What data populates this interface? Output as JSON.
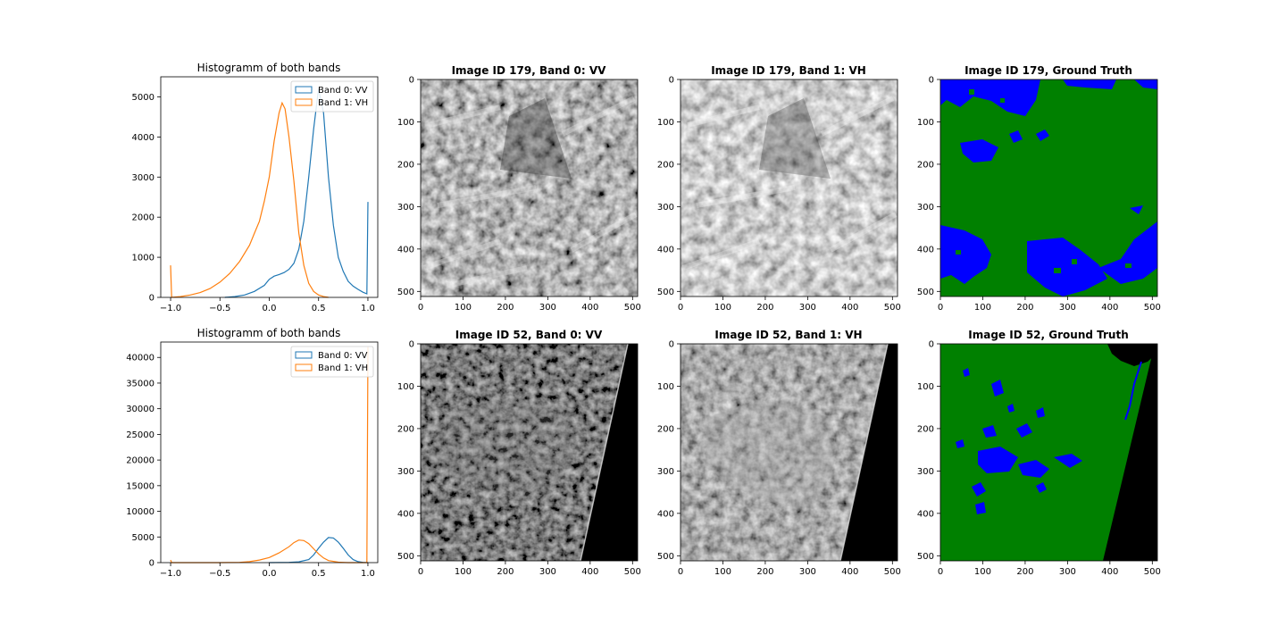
{
  "figure": {
    "colors": {
      "vv": "#1f77b4",
      "vh": "#ff7f0e",
      "water": "#0000ff",
      "land": "#008000",
      "nodata": "#000000"
    }
  },
  "chart_data": [
    {
      "type": "histogram",
      "title": "Histogramm of both bands",
      "xlim": [
        -1.1,
        1.1
      ],
      "ylim": [
        0,
        5500
      ],
      "xticks": [
        "−1.0",
        "−0.5",
        "0.0",
        "0.5",
        "1.0"
      ],
      "xtick_values": [
        -1.0,
        -0.5,
        0.0,
        0.5,
        1.0
      ],
      "yticks": [
        "0",
        "1000",
        "2000",
        "3000",
        "4000",
        "5000"
      ],
      "ytick_values": [
        0,
        1000,
        2000,
        3000,
        4000,
        5000
      ],
      "legend": {
        "placement": "upper-right",
        "entries": [
          "Band 0: VV",
          "Band 1: VH"
        ]
      },
      "series": [
        {
          "name": "Band 0: VV",
          "color": "#1f77b4",
          "x": [
            -0.45,
            -0.35,
            -0.25,
            -0.15,
            -0.05,
            0.0,
            0.05,
            0.1,
            0.15,
            0.2,
            0.25,
            0.3,
            0.35,
            0.4,
            0.45,
            0.5,
            0.55,
            0.6,
            0.65,
            0.7,
            0.75,
            0.8,
            0.85,
            0.9,
            0.95,
            0.99,
            1.0
          ],
          "y": [
            0,
            20,
            60,
            150,
            300,
            450,
            530,
            570,
            620,
            700,
            850,
            1200,
            1900,
            3000,
            4200,
            5200,
            4600,
            3000,
            1800,
            1000,
            650,
            400,
            280,
            200,
            130,
            90,
            2380
          ]
        },
        {
          "name": "Band 1: VH",
          "color": "#ff7f0e",
          "x": [
            -1.0,
            -0.99,
            -0.9,
            -0.8,
            -0.7,
            -0.6,
            -0.5,
            -0.4,
            -0.3,
            -0.2,
            -0.15,
            -0.1,
            -0.05,
            0.0,
            0.05,
            0.1,
            0.13,
            0.16,
            0.2,
            0.25,
            0.3,
            0.35,
            0.4,
            0.45,
            0.5,
            0.55,
            0.6
          ],
          "y": [
            800,
            0,
            20,
            60,
            120,
            220,
            380,
            600,
            900,
            1300,
            1600,
            1900,
            2400,
            3000,
            3900,
            4600,
            4850,
            4700,
            4000,
            2900,
            1600,
            800,
            350,
            150,
            60,
            20,
            0
          ]
        }
      ]
    },
    {
      "type": "heatmap",
      "title": "Image ID 179, Band 0: VV",
      "xlim": [
        0,
        512
      ],
      "ylim": [
        512,
        0
      ],
      "xticks": [
        "0",
        "100",
        "200",
        "300",
        "400",
        "500"
      ],
      "yticks": [
        "0",
        "100",
        "200",
        "300",
        "400",
        "500"
      ],
      "colormap": "gray"
    },
    {
      "type": "heatmap",
      "title": "Image ID 179, Band 1: VH",
      "xlim": [
        0,
        512
      ],
      "ylim": [
        512,
        0
      ],
      "xticks": [
        "0",
        "100",
        "200",
        "300",
        "400",
        "500"
      ],
      "yticks": [
        "0",
        "100",
        "200",
        "300",
        "400",
        "500"
      ],
      "colormap": "gray"
    },
    {
      "type": "heatmap",
      "title": "Image ID 179, Ground Truth",
      "xlim": [
        0,
        512
      ],
      "ylim": [
        512,
        0
      ],
      "xticks": [
        "0",
        "100",
        "200",
        "300",
        "400",
        "500"
      ],
      "yticks": [
        "0",
        "100",
        "200",
        "300",
        "400",
        "500"
      ],
      "colormap": "water=blue, land=green"
    },
    {
      "type": "histogram",
      "title": "Histogramm of both bands",
      "xlim": [
        -1.1,
        1.1
      ],
      "ylim": [
        0,
        43000
      ],
      "xticks": [
        "−1.0",
        "−0.5",
        "0.0",
        "0.5",
        "1.0"
      ],
      "xtick_values": [
        -1.0,
        -0.5,
        0.0,
        0.5,
        1.0
      ],
      "yticks": [
        "0",
        "5000",
        "10000",
        "15000",
        "20000",
        "25000",
        "30000",
        "35000",
        "40000"
      ],
      "ytick_values": [
        0,
        5000,
        10000,
        15000,
        20000,
        25000,
        30000,
        35000,
        40000
      ],
      "legend": {
        "placement": "upper-right",
        "entries": [
          "Band 0: VV",
          "Band 1: VH"
        ]
      },
      "series": [
        {
          "name": "Band 0: VV",
          "color": "#1f77b4",
          "x": [
            0.0,
            0.2,
            0.3,
            0.4,
            0.45,
            0.5,
            0.55,
            0.6,
            0.65,
            0.7,
            0.75,
            0.8,
            0.85,
            0.9,
            0.95,
            1.0
          ],
          "y": [
            0,
            50,
            150,
            600,
            1500,
            2800,
            4000,
            4900,
            4800,
            4000,
            2800,
            1500,
            600,
            200,
            50,
            0
          ]
        },
        {
          "name": "Band 1: VH",
          "color": "#ff7f0e",
          "x": [
            -1.0,
            -0.99,
            -0.5,
            -0.3,
            -0.2,
            -0.1,
            0.0,
            0.1,
            0.2,
            0.25,
            0.3,
            0.35,
            0.4,
            0.45,
            0.5,
            0.55,
            0.6,
            0.7,
            0.8,
            0.99,
            1.0
          ],
          "y": [
            500,
            0,
            0,
            50,
            200,
            500,
            1000,
            1900,
            3100,
            3900,
            4400,
            4300,
            3700,
            2700,
            1700,
            900,
            400,
            80,
            0,
            0,
            42000
          ]
        }
      ]
    },
    {
      "type": "heatmap",
      "title": "Image ID 52, Band 0: VV",
      "xlim": [
        0,
        512
      ],
      "ylim": [
        512,
        0
      ],
      "xticks": [
        "0",
        "100",
        "200",
        "300",
        "400",
        "500"
      ],
      "yticks": [
        "0",
        "100",
        "200",
        "300",
        "400",
        "500"
      ],
      "colormap": "gray"
    },
    {
      "type": "heatmap",
      "title": "Image ID 52, Band 1: VH",
      "xlim": [
        0,
        512
      ],
      "ylim": [
        512,
        0
      ],
      "xticks": [
        "0",
        "100",
        "200",
        "300",
        "400",
        "500"
      ],
      "yticks": [
        "0",
        "100",
        "200",
        "300",
        "400",
        "500"
      ],
      "colormap": "gray"
    },
    {
      "type": "heatmap",
      "title": "Image ID 52, Ground Truth",
      "xlim": [
        0,
        512
      ],
      "ylim": [
        512,
        0
      ],
      "xticks": [
        "0",
        "100",
        "200",
        "300",
        "400",
        "500"
      ],
      "yticks": [
        "0",
        "100",
        "200",
        "300",
        "400",
        "500"
      ],
      "colormap": "water=blue, land=green, nodata=black"
    }
  ]
}
